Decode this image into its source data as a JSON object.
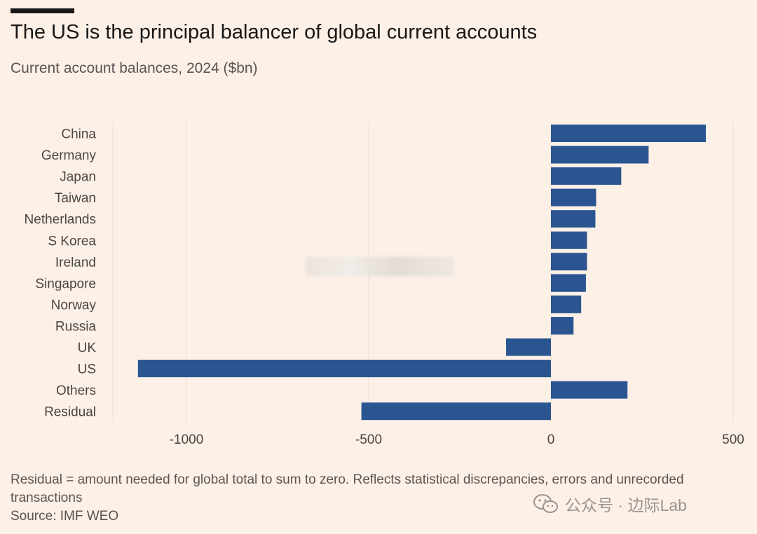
{
  "header": {
    "title": "The US is the principal balancer of global current accounts",
    "subtitle": "Current account balances, 2024 ($bn)"
  },
  "chart_data": {
    "type": "bar",
    "orientation": "horizontal",
    "title": "The US is the principal balancer of global current accounts",
    "subtitle": "Current account balances, 2024 ($bn)",
    "xlabel": "",
    "ylabel": "",
    "xlim": [
      -1200,
      500
    ],
    "xticks": [
      -1000,
      -500,
      0,
      500
    ],
    "xtick_labels": [
      "-1000",
      "-500",
      "0",
      "500"
    ],
    "categories": [
      "China",
      "Germany",
      "Japan",
      "Taiwan",
      "Netherlands",
      "S Korea",
      "Ireland",
      "Singapore",
      "Norway",
      "Russia",
      "UK",
      "US",
      "Others",
      "Residual"
    ],
    "values": [
      425,
      268,
      193,
      124,
      122,
      99,
      99,
      96,
      83,
      62,
      -123,
      -1133,
      210,
      -520
    ],
    "bar_color": "#2a5591",
    "grid": true
  },
  "footer": {
    "note": "Residual = amount needed for global total to sum to zero. Reflects statistical discrepancies, errors and unrecorded transactions",
    "source": "Source: IMF WEO"
  },
  "watermark": {
    "text": "公众号 · 边际Lab",
    "icon": "wechat-icon"
  }
}
